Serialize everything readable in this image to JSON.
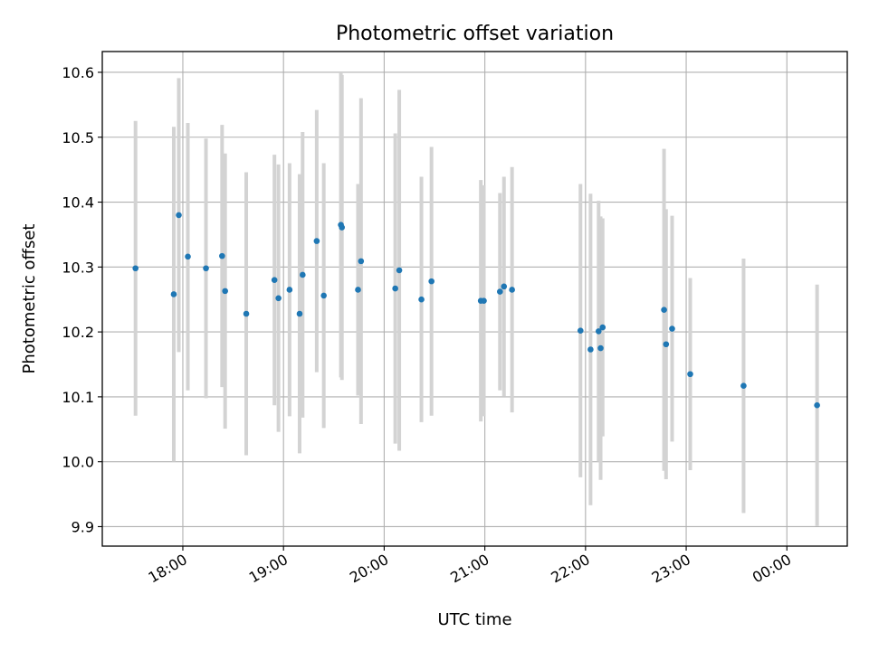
{
  "chart_data": {
    "type": "scatter",
    "title": "Photometric offset variation",
    "xlabel": "UTC time",
    "ylabel": "Photometric offset",
    "x_unit": "UTC time (hours after midnight, values past 24 are the next day)",
    "xlim": [
      17.2,
      24.6
    ],
    "ylim": [
      9.87,
      10.632
    ],
    "x_ticks": [
      {
        "value": 18,
        "label": "18:00"
      },
      {
        "value": 19,
        "label": "19:00"
      },
      {
        "value": 20,
        "label": "20:00"
      },
      {
        "value": 21,
        "label": "21:00"
      },
      {
        "value": 22,
        "label": "22:00"
      },
      {
        "value": 23,
        "label": "23:00"
      },
      {
        "value": 24,
        "label": "00:00"
      }
    ],
    "y_ticks": [
      {
        "value": 9.9,
        "label": "9.9"
      },
      {
        "value": 10.0,
        "label": "10.0"
      },
      {
        "value": 10.1,
        "label": "10.1"
      },
      {
        "value": 10.2,
        "label": "10.2"
      },
      {
        "value": 10.3,
        "label": "10.3"
      },
      {
        "value": 10.4,
        "label": "10.4"
      },
      {
        "value": 10.5,
        "label": "10.5"
      },
      {
        "value": 10.6,
        "label": "10.6"
      }
    ],
    "grid": true,
    "colors": {
      "point": "#1f77b4",
      "errorbar": "#d3d3d3",
      "grid": "#b0b0b0",
      "axis": "#000000"
    },
    "points": [
      {
        "x": 17.53,
        "y": 10.298,
        "err": 0.227
      },
      {
        "x": 17.91,
        "y": 10.258,
        "err": 0.258
      },
      {
        "x": 17.96,
        "y": 10.38,
        "err": 0.211
      },
      {
        "x": 18.05,
        "y": 10.316,
        "err": 0.206
      },
      {
        "x": 18.23,
        "y": 10.298,
        "err": 0.2
      },
      {
        "x": 18.39,
        "y": 10.317,
        "err": 0.202
      },
      {
        "x": 18.42,
        "y": 10.263,
        "err": 0.212
      },
      {
        "x": 18.63,
        "y": 10.228,
        "err": 0.218
      },
      {
        "x": 18.91,
        "y": 10.28,
        "err": 0.193
      },
      {
        "x": 18.95,
        "y": 10.252,
        "err": 0.206
      },
      {
        "x": 19.06,
        "y": 10.265,
        "err": 0.195
      },
      {
        "x": 19.16,
        "y": 10.228,
        "err": 0.215
      },
      {
        "x": 19.19,
        "y": 10.288,
        "err": 0.22
      },
      {
        "x": 19.33,
        "y": 10.34,
        "err": 0.202
      },
      {
        "x": 19.4,
        "y": 10.256,
        "err": 0.204
      },
      {
        "x": 19.57,
        "y": 10.365,
        "err": 0.235
      },
      {
        "x": 19.58,
        "y": 10.361,
        "err": 0.235
      },
      {
        "x": 19.74,
        "y": 10.265,
        "err": 0.163
      },
      {
        "x": 19.77,
        "y": 10.309,
        "err": 0.251
      },
      {
        "x": 20.11,
        "y": 10.267,
        "err": 0.239
      },
      {
        "x": 20.15,
        "y": 10.295,
        "err": 0.278
      },
      {
        "x": 20.37,
        "y": 10.25,
        "err": 0.189
      },
      {
        "x": 20.47,
        "y": 10.278,
        "err": 0.207
      },
      {
        "x": 20.96,
        "y": 10.248,
        "err": 0.186
      },
      {
        "x": 20.99,
        "y": 10.248,
        "err": 0.178
      },
      {
        "x": 21.15,
        "y": 10.262,
        "err": 0.152
      },
      {
        "x": 21.19,
        "y": 10.27,
        "err": 0.169
      },
      {
        "x": 21.27,
        "y": 10.265,
        "err": 0.189
      },
      {
        "x": 21.95,
        "y": 10.202,
        "err": 0.226
      },
      {
        "x": 22.05,
        "y": 10.173,
        "err": 0.24
      },
      {
        "x": 22.13,
        "y": 10.201,
        "err": 0.201
      },
      {
        "x": 22.15,
        "y": 10.175,
        "err": 0.203
      },
      {
        "x": 22.17,
        "y": 10.207,
        "err": 0.168
      },
      {
        "x": 22.78,
        "y": 10.234,
        "err": 0.248
      },
      {
        "x": 22.8,
        "y": 10.181,
        "err": 0.208
      },
      {
        "x": 22.86,
        "y": 10.205,
        "err": 0.174
      },
      {
        "x": 23.04,
        "y": 10.135,
        "err": 0.148
      },
      {
        "x": 23.57,
        "y": 10.117,
        "err": 0.196
      },
      {
        "x": 24.3,
        "y": 10.087,
        "err": 0.186
      }
    ]
  }
}
